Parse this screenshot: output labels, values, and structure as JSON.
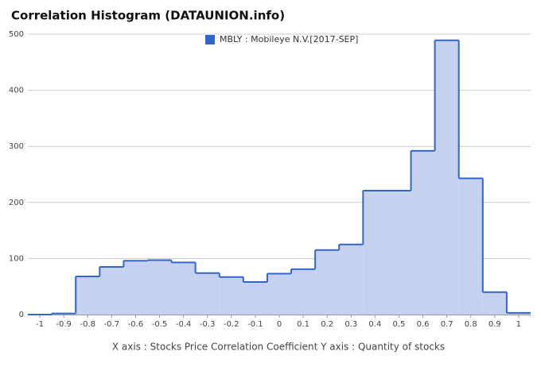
{
  "chart_data": {
    "type": "histogram",
    "title": "Correlation Histogram (DATAUNION.info)",
    "axis_title": "X axis : Stocks Price Correlation Coefficient  Y axis : Quantity of stocks",
    "bins": [
      -1.05,
      -0.95,
      -0.85,
      -0.75,
      -0.65,
      -0.55,
      -0.45,
      -0.35,
      -0.25,
      -0.15,
      -0.05,
      0.05,
      0.15,
      0.25,
      0.35,
      0.45,
      0.55,
      0.65,
      0.75,
      0.85,
      0.95,
      1.05
    ],
    "series": [
      {
        "name": "MBLY : Mobileye N.V.[2017-SEP]",
        "color": "#3366cc",
        "fill": "#c5d1ef",
        "values": [
          0,
          2,
          68,
          85,
          96,
          97,
          93,
          74,
          67,
          58,
          73,
          81,
          115,
          125,
          221,
          221,
          292,
          489,
          243,
          40,
          3
        ]
      }
    ],
    "xlim": [
      -1.05,
      1.05
    ],
    "xticks": [
      -1,
      -0.9,
      -0.8,
      -0.7,
      -0.6,
      -0.5,
      -0.4,
      -0.3,
      -0.2,
      -0.1,
      0,
      0.1,
      0.2,
      0.3,
      0.4,
      0.5,
      0.6,
      0.7,
      0.8,
      0.9,
      1
    ],
    "ylim": [
      0,
      500
    ],
    "yticks": [
      0,
      100,
      200,
      300,
      400,
      500
    ],
    "grid": true
  }
}
